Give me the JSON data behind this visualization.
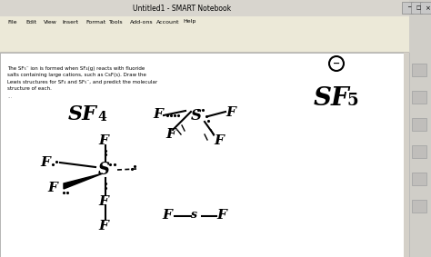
{
  "title_bar": "Untitled1 - SMART Notebook",
  "menu_items": [
    "File",
    "Edit",
    "View",
    "Insert",
    "Format",
    "Tools",
    "Add-ons",
    "Account",
    "Help"
  ],
  "problem_text": "The SF₅⁻ ion is formed when SF₄(g) reacts with fluoride\nsalts containing large cations, such as CsF(s). Draw the\nLewis structures for SF₄ and SF₅⁻, and predict the molecular\nstructure of each.",
  "title_bar_color": "#d4d0c8",
  "menu_bar_color": "#ece9d8",
  "toolbar_color": "#ece9d8",
  "content_color": "#ffffff",
  "sidebar_color": "#d0cec8",
  "bg_color": "#b0aeaa"
}
